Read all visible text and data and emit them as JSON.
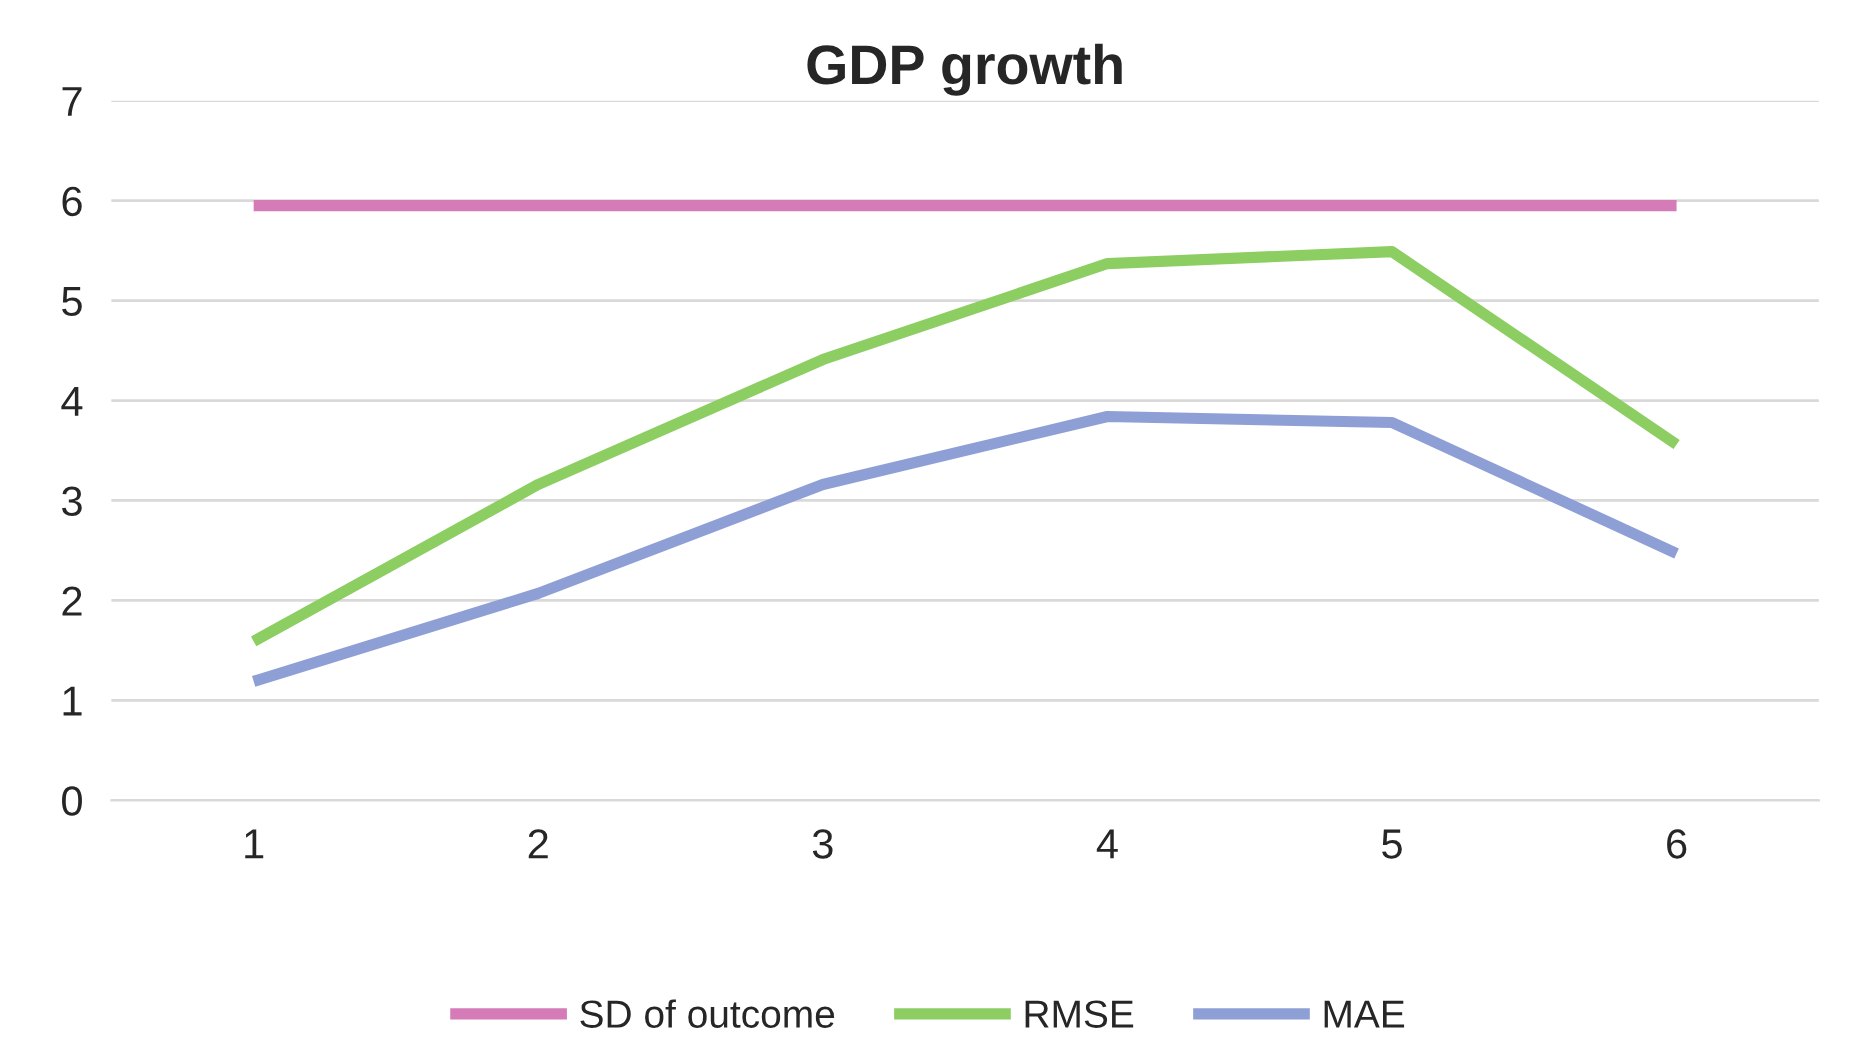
{
  "chart_data": {
    "type": "line",
    "title": "GDP growth",
    "categories": [
      "1",
      "2",
      "3",
      "4",
      "5",
      "6"
    ],
    "series": [
      {
        "name": "SD of outcome",
        "color": "#d47bb8",
        "values": [
          5.95,
          5.95,
          5.95,
          5.95,
          5.95,
          5.95
        ]
      },
      {
        "name": "RMSE",
        "color": "#8cce62",
        "values": [
          1.59,
          3.16,
          4.41,
          5.37,
          5.49,
          3.56
        ]
      },
      {
        "name": "MAE",
        "color": "#8e9fd6",
        "values": [
          1.19,
          2.07,
          3.16,
          3.84,
          3.78,
          2.47
        ]
      }
    ],
    "ylim": [
      0,
      7
    ],
    "yticks": [
      0,
      1,
      2,
      3,
      4,
      5,
      6,
      7
    ],
    "grid": "y",
    "legend": "bottom",
    "marker": "none",
    "line_style": "solid"
  }
}
